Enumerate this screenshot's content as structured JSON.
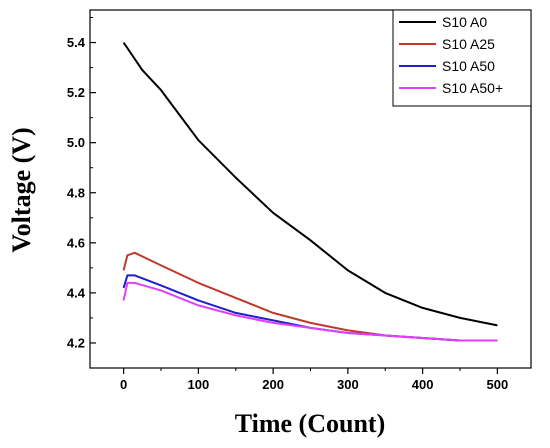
{
  "chart_data": {
    "type": "line",
    "title": "",
    "xlabel": "Time (Count)",
    "ylabel": "Voltage (V)",
    "xlim": [
      -45,
      545
    ],
    "ylim": [
      4.1,
      5.53
    ],
    "xticks": [
      0,
      100,
      200,
      300,
      400,
      500
    ],
    "yticks": [
      4.2,
      4.4,
      4.6,
      4.8,
      5.0,
      5.2,
      5.4
    ],
    "ytick_labels": [
      "4.2",
      "4.4",
      "4.6",
      "4.8",
      "5.0",
      "5.2",
      "5.4"
    ],
    "grid": false,
    "legend_position": "top-right",
    "series": [
      {
        "name": "S10 A0",
        "color": "#000000",
        "x": [
          0,
          25,
          50,
          100,
          150,
          200,
          250,
          300,
          350,
          400,
          450,
          500
        ],
        "y": [
          5.4,
          5.29,
          5.21,
          5.01,
          4.86,
          4.72,
          4.61,
          4.49,
          4.4,
          4.34,
          4.3,
          4.27
        ]
      },
      {
        "name": "S10 A25",
        "color": "#c0392b",
        "x": [
          0,
          5,
          15,
          50,
          100,
          150,
          200,
          250,
          300,
          350,
          400,
          450,
          500
        ],
        "y": [
          4.49,
          4.55,
          4.56,
          4.51,
          4.44,
          4.38,
          4.32,
          4.28,
          4.25,
          4.23,
          4.22,
          4.21,
          4.21
        ]
      },
      {
        "name": "S10 A50",
        "color": "#1f1fcc",
        "x": [
          0,
          5,
          15,
          50,
          100,
          150,
          200,
          250,
          300,
          350,
          400,
          450,
          500
        ],
        "y": [
          4.42,
          4.47,
          4.47,
          4.43,
          4.37,
          4.32,
          4.29,
          4.26,
          4.24,
          4.23,
          4.22,
          4.21,
          4.21
        ]
      },
      {
        "name": "S10 A50+",
        "color": "#e040fb",
        "x": [
          0,
          5,
          15,
          50,
          100,
          150,
          200,
          250,
          300,
          350,
          400,
          450,
          500
        ],
        "y": [
          4.37,
          4.44,
          4.44,
          4.41,
          4.35,
          4.31,
          4.28,
          4.26,
          4.24,
          4.23,
          4.22,
          4.21,
          4.21
        ]
      }
    ]
  }
}
